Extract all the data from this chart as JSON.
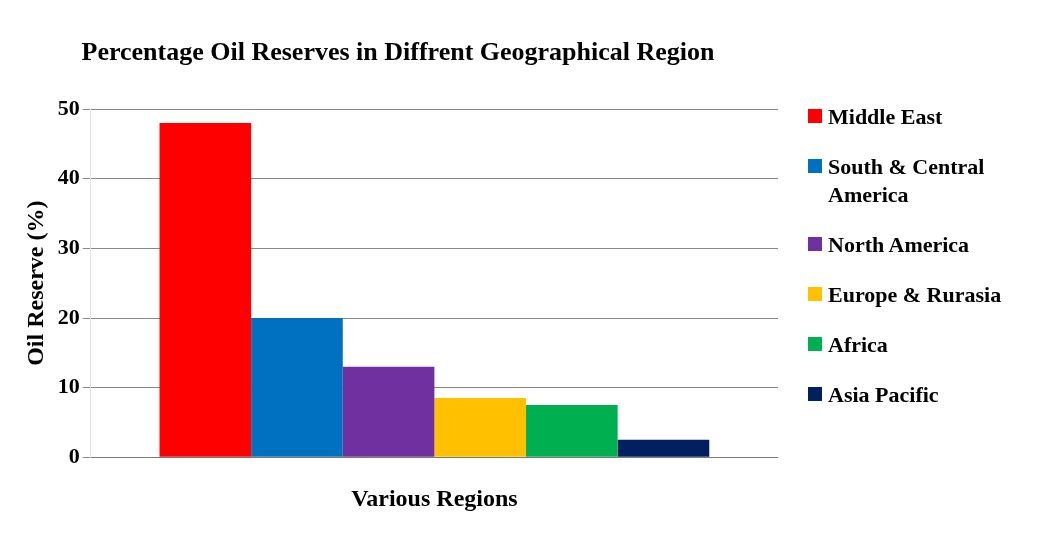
{
  "chart_data": {
    "type": "bar",
    "title": "Percentage Oil Reserves in Diffrent Geographical Region",
    "xlabel": "Various Regions",
    "ylabel": "Oil Reserve (%)",
    "categories": [
      null
    ],
    "series": [
      {
        "name": "Middle East",
        "color": "#ff0000",
        "values": [
          48
        ]
      },
      {
        "name": "South & Central America",
        "color": "#0070c0",
        "values": [
          20
        ]
      },
      {
        "name": "North America",
        "color": "#7030a0",
        "values": [
          13
        ]
      },
      {
        "name": "Europe & Rurasia",
        "color": "#ffc000",
        "values": [
          8.5
        ]
      },
      {
        "name": "Africa",
        "color": "#00b050",
        "values": [
          7.5
        ]
      },
      {
        "name": "Asia Pacific",
        "color": "#002060",
        "values": [
          2.5
        ]
      }
    ],
    "ylim": [
      0,
      50
    ],
    "yticks": [
      0,
      10,
      20,
      30,
      40,
      50
    ],
    "grid": "y",
    "legend": "right"
  }
}
